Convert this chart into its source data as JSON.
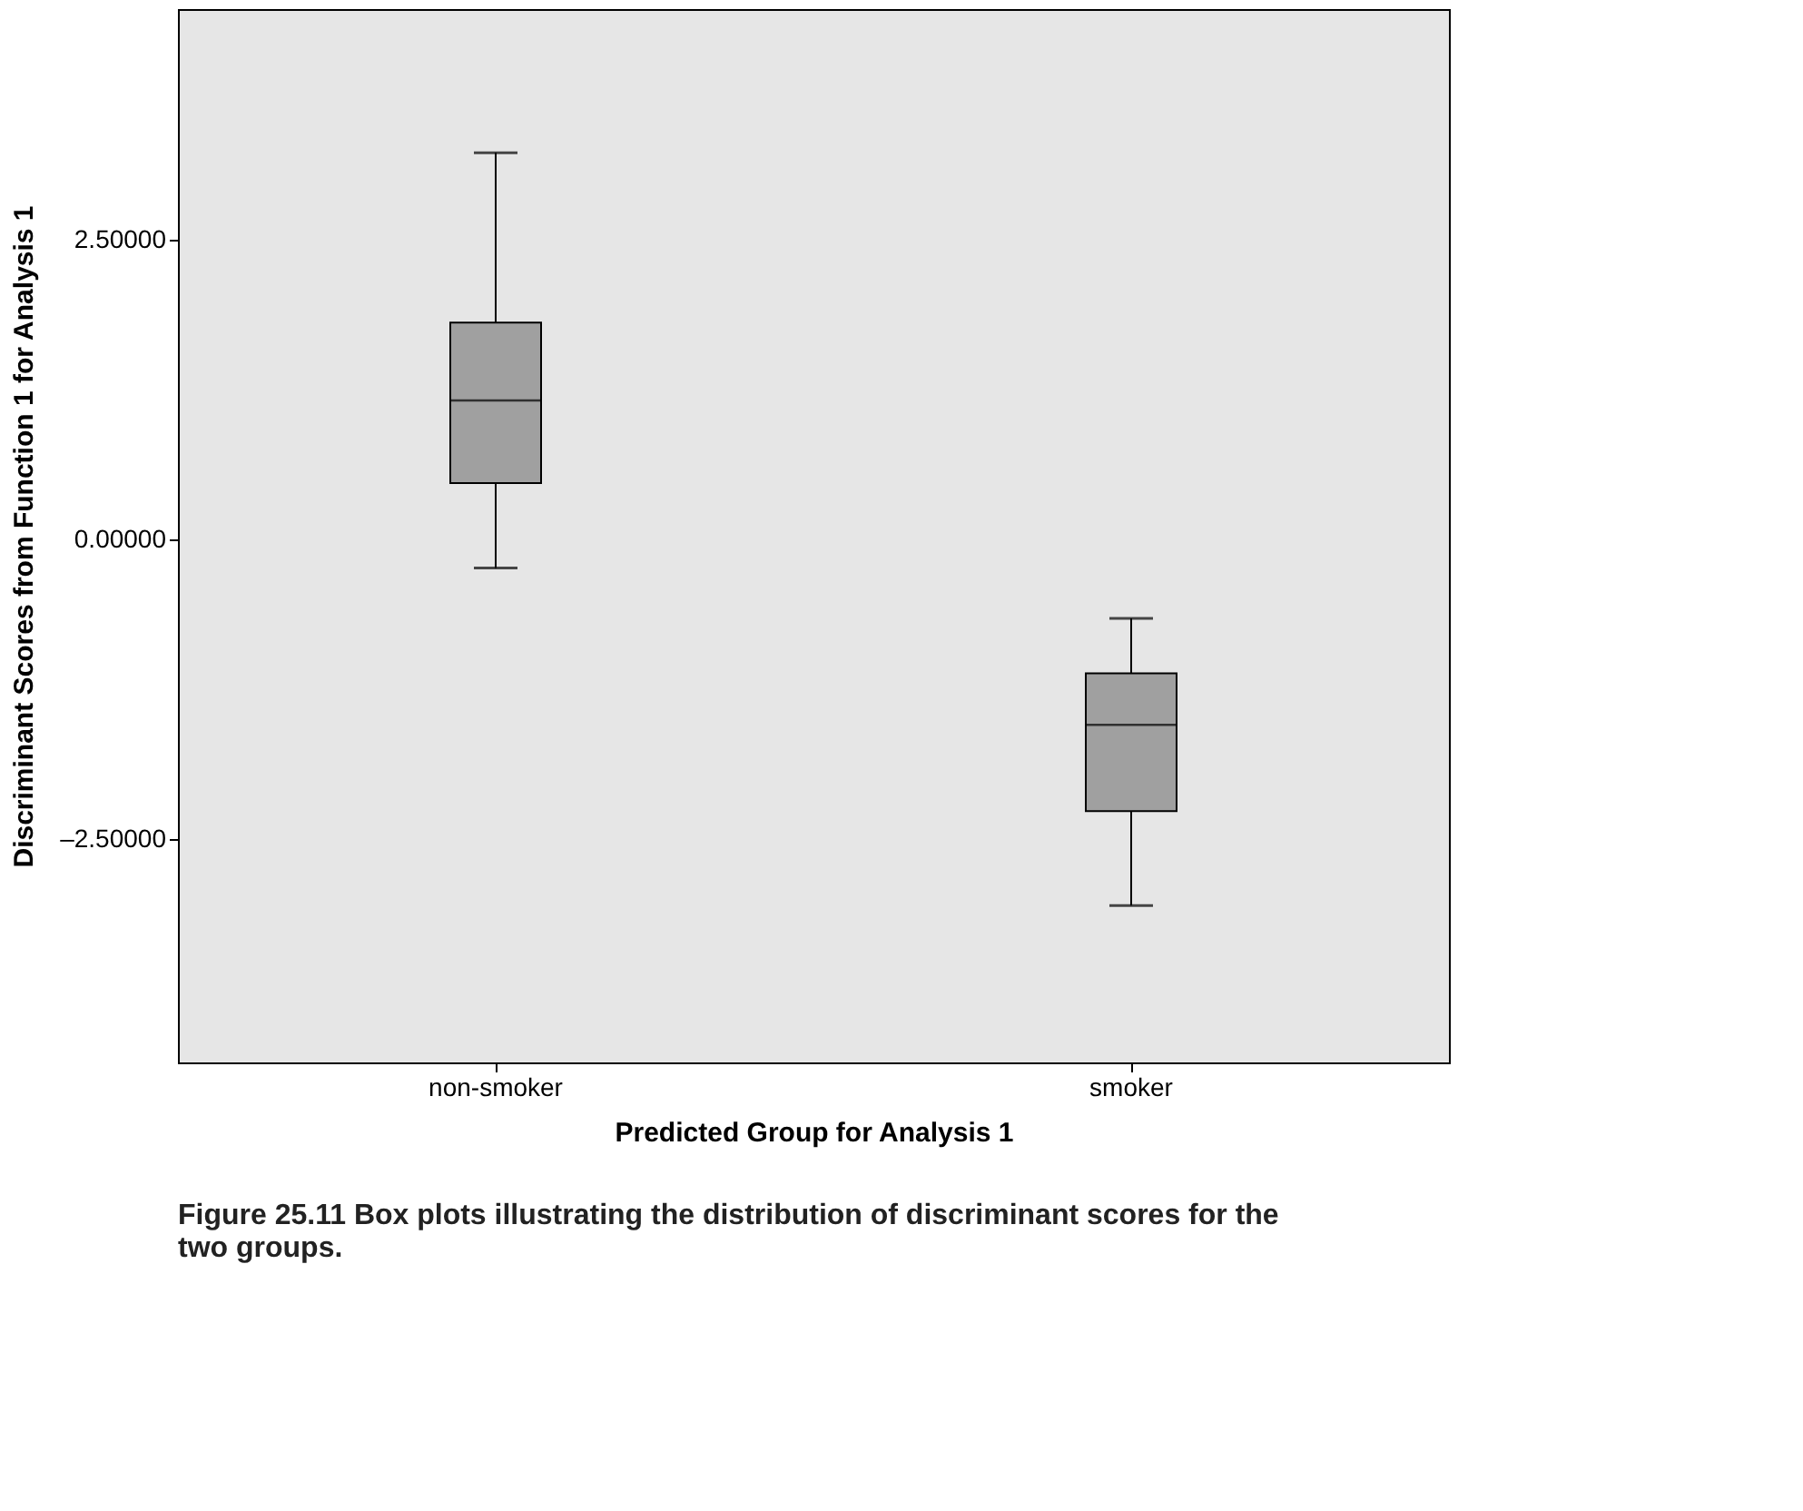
{
  "chart_data": {
    "type": "box",
    "xlabel": "Predicted Group for Analysis 1",
    "ylabel": "Discriminant Scores from Function 1 for Analysis 1",
    "categories": [
      "non-smoker",
      "smoker"
    ],
    "boxes": [
      {
        "low": -0.24,
        "q1": 0.47,
        "median": 1.16,
        "q3": 1.81,
        "high": 3.23
      },
      {
        "low": -3.06,
        "q1": -2.27,
        "median": -1.55,
        "q3": -1.12,
        "high": -0.66
      }
    ],
    "color": "#a0a0a0",
    "ylim": [
      -4.37,
      4.43
    ],
    "yticks": [
      {
        "value": -2.5,
        "label": "–2.50000"
      },
      {
        "value": 0,
        "label": "0.00000"
      },
      {
        "value": 2.5,
        "label": "2.50000"
      }
    ],
    "grid": false,
    "annotations": [
      "Figure 25.11 Box plots illustrating the distribution of discriminant scores for the two groups."
    ]
  }
}
